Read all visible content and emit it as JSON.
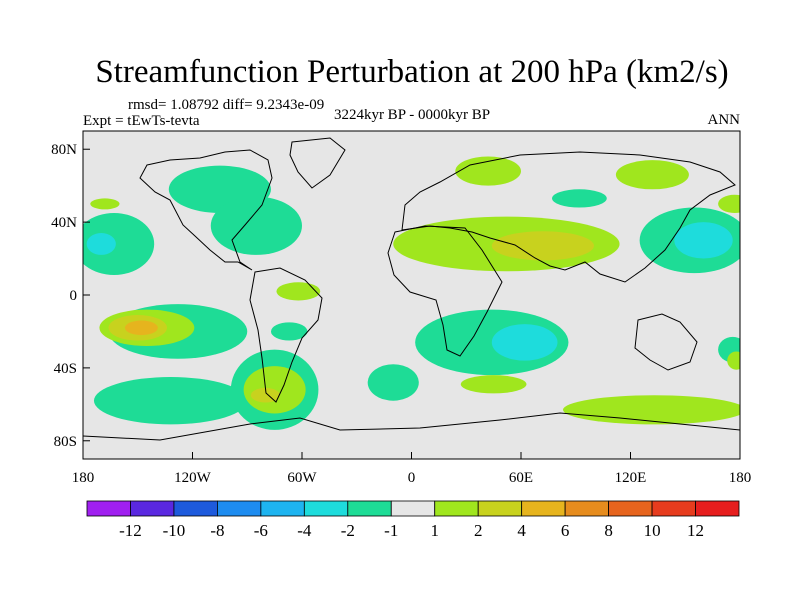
{
  "chart_data": {
    "type": "heatmap",
    "title": "Streamfunction Perturbation at 200 hPa (km2/s)",
    "stats": "rmsd= 1.08792  diff= 9.2343e-09",
    "experiment": "Expt = tEwTs-tevta",
    "period": "3224kyr BP - 0000kyr BP",
    "season": "ANN",
    "x_ticks": [
      "180",
      "120W",
      "60W",
      "0",
      "60E",
      "120E",
      "180"
    ],
    "x_values": [
      -180,
      -120,
      -60,
      0,
      60,
      120,
      180
    ],
    "y_ticks": [
      "80N",
      "40N",
      "0",
      "40S",
      "80S"
    ],
    "y_values": [
      80,
      40,
      0,
      -40,
      -80
    ],
    "xlim": [
      -180,
      180
    ],
    "ylim": [
      -90,
      90
    ],
    "colorbar_labels": [
      "-12",
      "-10",
      "-8",
      "-6",
      "-4",
      "-2",
      "-1",
      "1",
      "2",
      "4",
      "6",
      "8",
      "10",
      "12"
    ],
    "colorbar_colors": [
      "#a020f0",
      "#5a28e0",
      "#1e5adc",
      "#1e8cf0",
      "#1eb4f0",
      "#1edcdc",
      "#1edc96",
      "#e6e6e6",
      "#a0e61e",
      "#c8d21e",
      "#e6b41e",
      "#e68c1e",
      "#e6641e",
      "#e63c1e",
      "#e61e1e"
    ],
    "regions": [
      {
        "lon": -105,
        "lat": 58,
        "rx": 28,
        "ry": 13,
        "color": "#1edc96"
      },
      {
        "lon": -85,
        "lat": 38,
        "rx": 25,
        "ry": 16,
        "color": "#1edc96"
      },
      {
        "lon": -163,
        "lat": 28,
        "rx": 22,
        "ry": 17,
        "color": "#1edc96"
      },
      {
        "lon": -170,
        "lat": 28,
        "rx": 8,
        "ry": 6,
        "color": "#1edcdc"
      },
      {
        "lon": -168,
        "lat": 50,
        "rx": 8,
        "ry": 3,
        "color": "#a0e61e"
      },
      {
        "lon": -128,
        "lat": -20,
        "rx": 38,
        "ry": 15,
        "color": "#1edc96"
      },
      {
        "lon": -145,
        "lat": -18,
        "rx": 26,
        "ry": 10,
        "color": "#a0e61e"
      },
      {
        "lon": -150,
        "lat": -18,
        "rx": 16,
        "ry": 7,
        "color": "#c8d21e"
      },
      {
        "lon": -148,
        "lat": -18,
        "rx": 9,
        "ry": 4,
        "color": "#e6b41e"
      },
      {
        "lon": -132,
        "lat": -58,
        "rx": 42,
        "ry": 13,
        "color": "#1edc96"
      },
      {
        "lon": -75,
        "lat": -52,
        "rx": 24,
        "ry": 22,
        "color": "#1edc96"
      },
      {
        "lon": -75,
        "lat": -52,
        "rx": 17,
        "ry": 13,
        "color": "#a0e61e"
      },
      {
        "lon": -80,
        "lat": -55,
        "rx": 8,
        "ry": 4,
        "color": "#c8d21e"
      },
      {
        "lon": -62,
        "lat": 2,
        "rx": 12,
        "ry": 5,
        "color": "#a0e61e"
      },
      {
        "lon": -67,
        "lat": -20,
        "rx": 10,
        "ry": 5,
        "color": "#1edc96"
      },
      {
        "lon": -10,
        "lat": -48,
        "rx": 14,
        "ry": 10,
        "color": "#1edc96"
      },
      {
        "lon": 52,
        "lat": 28,
        "rx": 62,
        "ry": 15,
        "color": "#a0e61e"
      },
      {
        "lon": 72,
        "lat": 27,
        "rx": 28,
        "ry": 8,
        "color": "#c8d21e"
      },
      {
        "lon": 44,
        "lat": -26,
        "rx": 42,
        "ry": 18,
        "color": "#1edc96"
      },
      {
        "lon": 62,
        "lat": -26,
        "rx": 18,
        "ry": 10,
        "color": "#1edcdc"
      },
      {
        "lon": 45,
        "lat": -49,
        "rx": 18,
        "ry": 5,
        "color": "#a0e61e"
      },
      {
        "lon": 42,
        "lat": 68,
        "rx": 18,
        "ry": 8,
        "color": "#a0e61e"
      },
      {
        "lon": 92,
        "lat": 53,
        "rx": 15,
        "ry": 5,
        "color": "#1edc96"
      },
      {
        "lon": 132,
        "lat": 66,
        "rx": 20,
        "ry": 8,
        "color": "#a0e61e"
      },
      {
        "lon": 155,
        "lat": 30,
        "rx": 30,
        "ry": 18,
        "color": "#1edc96"
      },
      {
        "lon": 160,
        "lat": 30,
        "rx": 16,
        "ry": 10,
        "color": "#1edcdc"
      },
      {
        "lon": 177,
        "lat": 50,
        "rx": 9,
        "ry": 5,
        "color": "#a0e61e"
      },
      {
        "lon": 176,
        "lat": -30,
        "rx": 8,
        "ry": 7,
        "color": "#1edc96"
      },
      {
        "lon": 178,
        "lat": -36,
        "rx": 5,
        "ry": 5,
        "color": "#a0e61e"
      },
      {
        "lon": 133,
        "lat": -63,
        "rx": 50,
        "ry": 8,
        "color": "#a0e61e"
      }
    ]
  }
}
